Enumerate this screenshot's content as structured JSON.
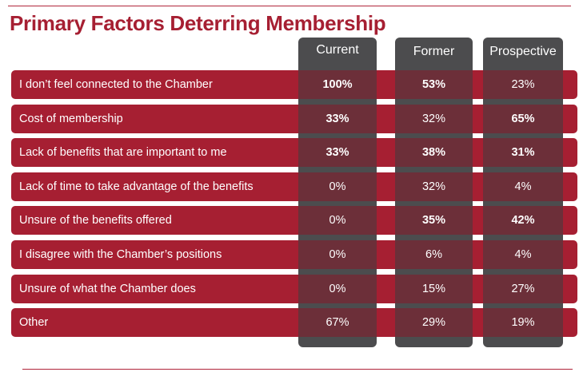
{
  "title": "Primary Factors Deterring Membership",
  "columns": [
    "Current",
    "Former",
    "Prospective"
  ],
  "rows": [
    {
      "label": "I don’t feel connected to the Chamber",
      "values": [
        "100%",
        "53%",
        "23%"
      ],
      "bold": [
        true,
        true,
        false
      ]
    },
    {
      "label": "Cost of membership",
      "values": [
        "33%",
        "32%",
        "65%"
      ],
      "bold": [
        true,
        false,
        true
      ]
    },
    {
      "label": "Lack of benefits that are important to me",
      "values": [
        "33%",
        "38%",
        "31%"
      ],
      "bold": [
        true,
        true,
        true
      ]
    },
    {
      "label": "Lack of time to take advantage of the benefits",
      "values": [
        "0%",
        "32%",
        "4%"
      ],
      "bold": [
        false,
        false,
        false
      ]
    },
    {
      "label": "Unsure of the benefits offered",
      "values": [
        "0%",
        "35%",
        "42%"
      ],
      "bold": [
        false,
        true,
        true
      ]
    },
    {
      "label": "I disagree with the Chamber’s positions",
      "values": [
        "0%",
        "6%",
        "4%"
      ],
      "bold": [
        false,
        false,
        false
      ]
    },
    {
      "label": "Unsure of what the Chamber does",
      "values": [
        "0%",
        "15%",
        "27%"
      ],
      "bold": [
        false,
        false,
        false
      ]
    },
    {
      "label": "Other",
      "values": [
        "67%",
        "29%",
        "19%"
      ],
      "bold": [
        false,
        false,
        false
      ]
    }
  ],
  "colors": {
    "accent": "#a61f32",
    "column": "#4c4c4e"
  }
}
